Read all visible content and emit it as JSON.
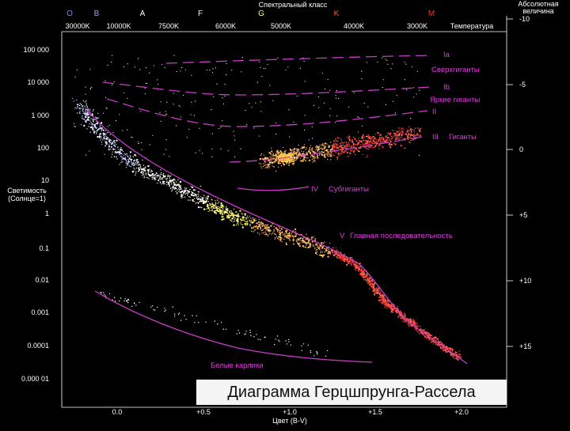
{
  "chart_data": {
    "type": "scatter",
    "axes": {
      "top_title": "Спектральный класс",
      "spectral_classes": [
        "O",
        "B",
        "A",
        "F",
        "G",
        "K",
        "M"
      ],
      "temperature_label": "Температура",
      "temperature_ticks": [
        "30000K",
        "10000K",
        "7500K",
        "6000K",
        "5000K",
        "4000K",
        "3000K"
      ],
      "left_label_line1": "Светимость",
      "left_label_line2": "(Солнце=1)",
      "luminosity_ticks": [
        "100 000",
        "10 000",
        "1 000",
        "100",
        "10",
        "1",
        "0.1",
        "0.01",
        "0.001",
        "0.0001",
        "0.000 01"
      ],
      "right_title_line1": "Абсолютная",
      "right_title_line2": "величина",
      "magnitude_ticks": [
        "-10",
        "-5",
        "0",
        "+5",
        "+10",
        "+15"
      ],
      "bottom_label": "Цвет (B-V)",
      "color_ticks": [
        "0.0",
        "+0.5",
        "+1.0",
        "+1.5",
        "+2.0"
      ]
    },
    "luminosity_classes": [
      {
        "name": "Ia",
        "label": "Сверхгиганты"
      },
      {
        "name": "Ib",
        "label": ""
      },
      {
        "name": "II",
        "label": "Яркие гиганты"
      },
      {
        "name": "III",
        "label": "Гиганты"
      },
      {
        "name": "IV",
        "label": "Субгиганты"
      },
      {
        "name": "V",
        "label": "Главная последовательность"
      },
      {
        "name": "",
        "label": "Белые карлики"
      }
    ],
    "colors": {
      "background": "#000000",
      "axis_text": "#ffffff",
      "class_lines": "#d040d0",
      "spectral_O": "#6688ff",
      "spectral_G": "#ffff55",
      "spectral_K": "#ff5533",
      "spectral_M": "#ff3030"
    }
  },
  "caption": "Диаграмма Герцшпрунга-Рассела"
}
